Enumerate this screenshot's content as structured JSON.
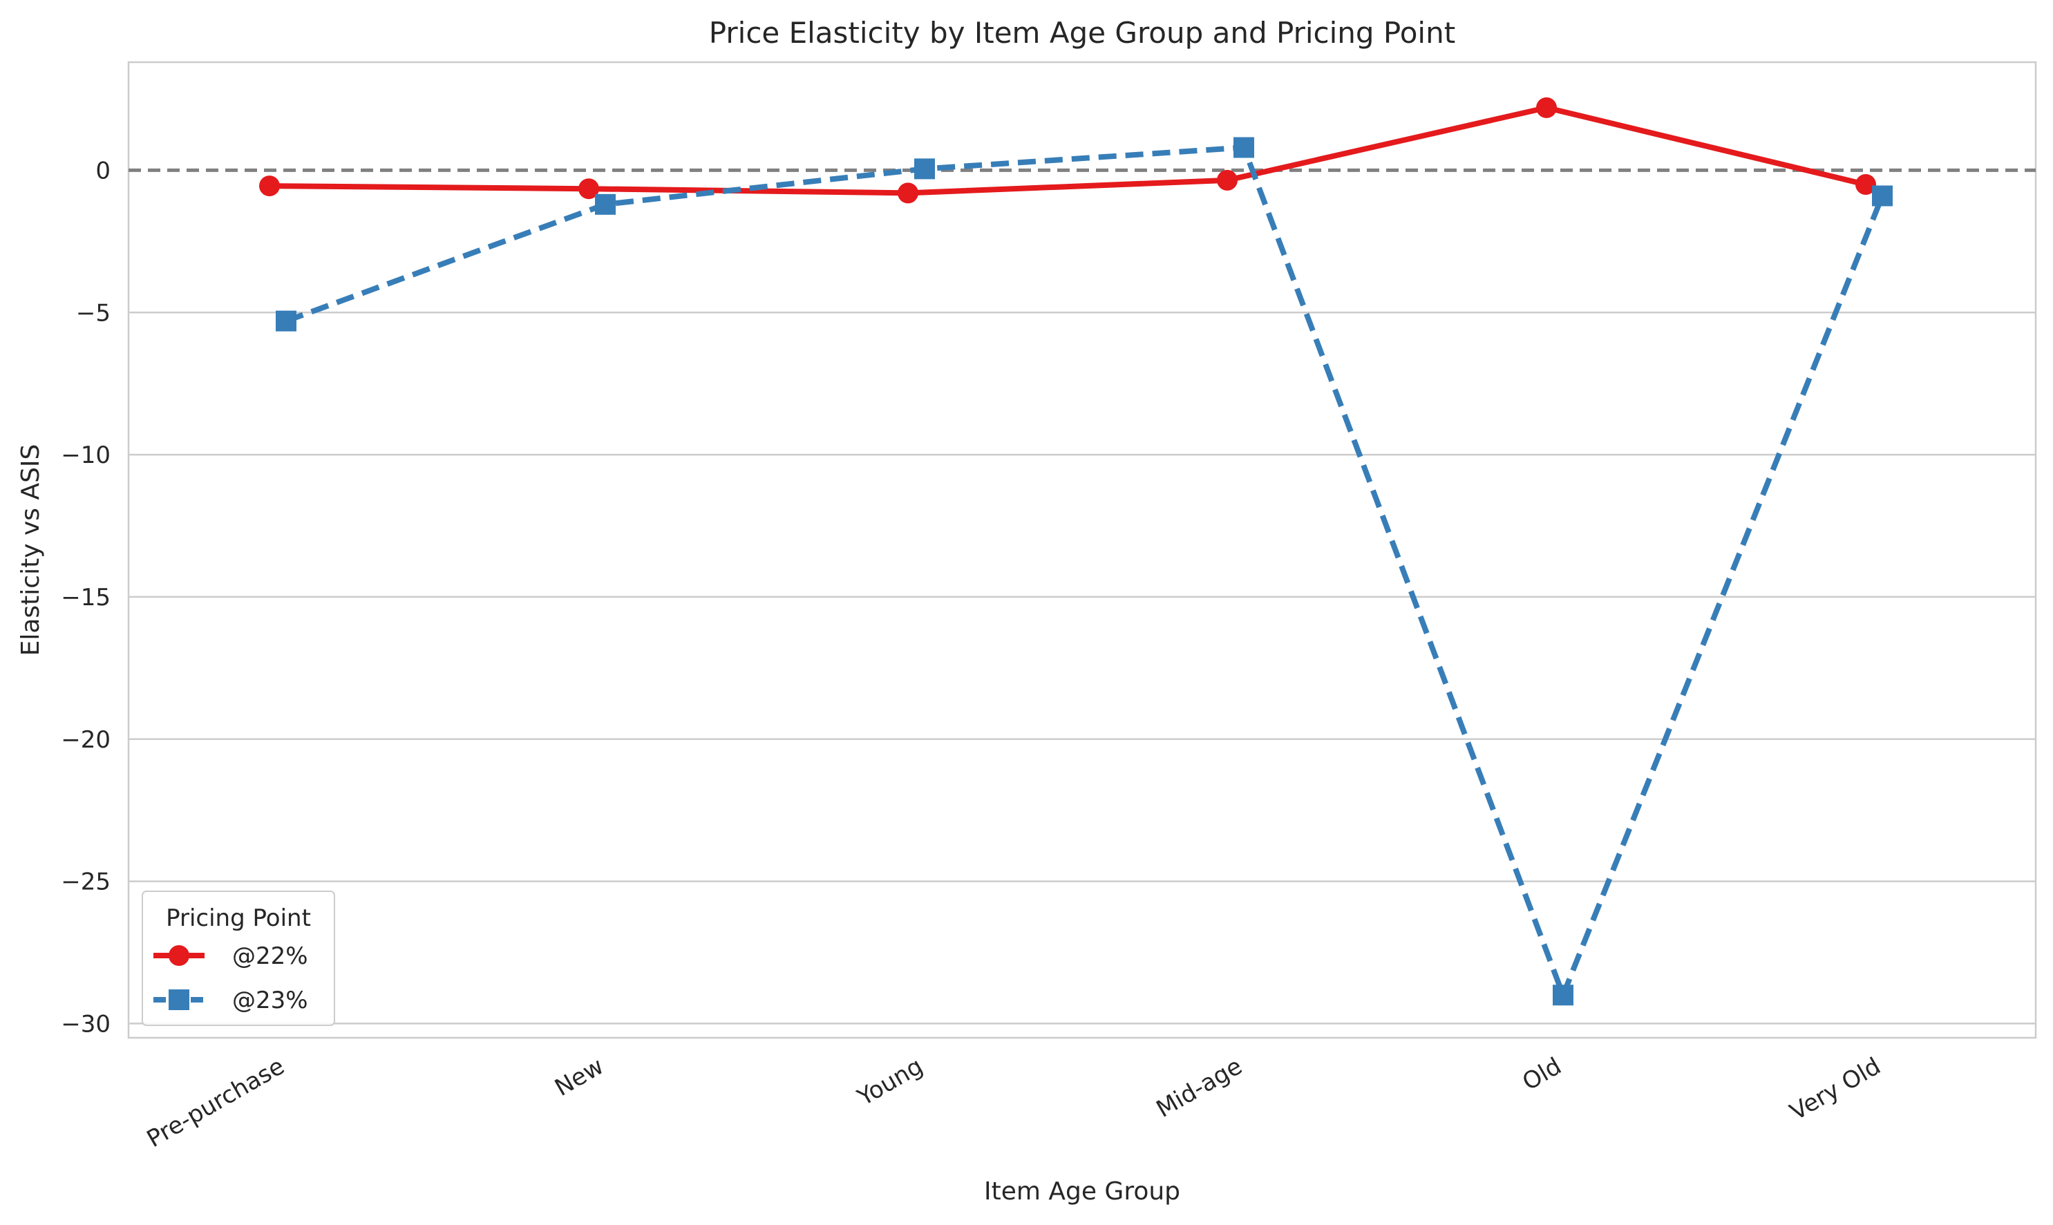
{
  "chart_data": {
    "type": "line",
    "title": "Price Elasticity by Item Age Group and Pricing Point",
    "xlabel": "Item Age Group",
    "ylabel": "Elasticity vs ASIS",
    "categories": [
      "Pre-purchase",
      "New",
      "Young",
      "Mid-age",
      "Old",
      "Very Old"
    ],
    "ylim": [
      -30.5,
      3.8
    ],
    "yticks": [
      0,
      -5,
      -10,
      -15,
      -20,
      -25,
      -30
    ],
    "ytick_labels": [
      "0",
      "−5",
      "−10",
      "−15",
      "−20",
      "−25",
      "−30"
    ],
    "grid": "horizontal",
    "reference_line": {
      "y": 0,
      "style": "dashed",
      "color": "#808080"
    },
    "legend": {
      "title": "Pricing Point",
      "placement": "lower-left"
    },
    "series": [
      {
        "name": "@22%",
        "color": "#e41a1c",
        "marker": "circle",
        "style": "solid",
        "values": [
          -0.55,
          -0.65,
          -0.8,
          -0.35,
          2.2,
          -0.5
        ]
      },
      {
        "name": "@23%",
        "color": "#377eb8",
        "marker": "square",
        "style": "dashed",
        "values": [
          -5.3,
          -1.2,
          0.05,
          0.8,
          -29.0,
          -0.9
        ]
      }
    ]
  }
}
